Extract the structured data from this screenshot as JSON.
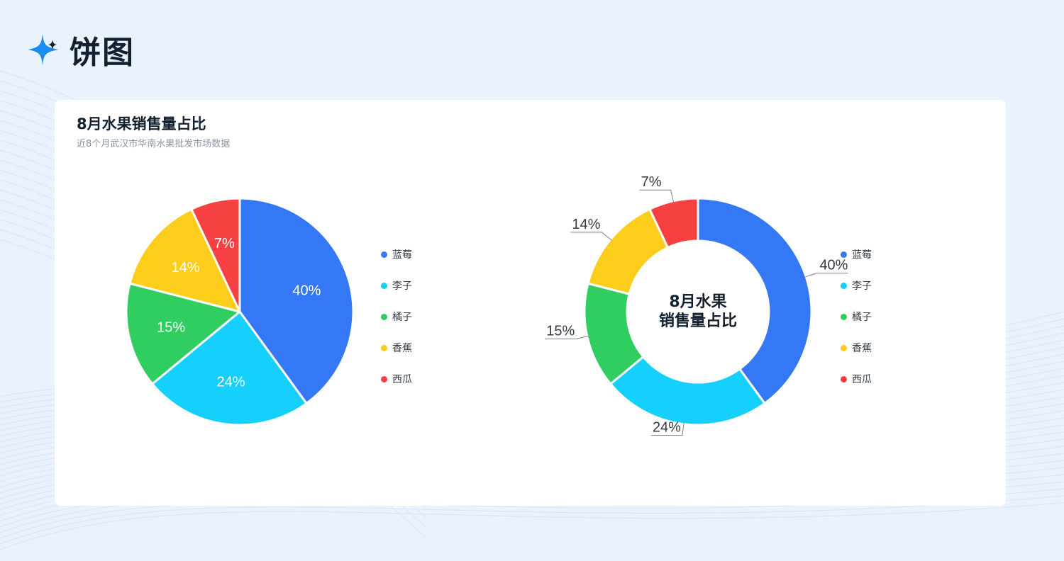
{
  "page_title": "饼图",
  "card": {
    "title": "8月水果销售量占比",
    "subtitle": "近8个月武汉市华南水果批发市场数据"
  },
  "donut_center": {
    "line1": "8月水果",
    "line2": "销售量占比"
  },
  "chart_data": [
    {
      "type": "pie",
      "categories": [
        "蓝莓",
        "李子",
        "橘子",
        "香蕉",
        "西瓜"
      ],
      "values": [
        40,
        24,
        15,
        14,
        7
      ],
      "labels": [
        "40%",
        "24%",
        "15%",
        "14%",
        "7%"
      ],
      "colors": [
        "#3478f6",
        "#15d0fc",
        "#30cd60",
        "#fccd1b",
        "#f64042"
      ],
      "legend": "right"
    },
    {
      "type": "pie",
      "variant": "donut",
      "categories": [
        "蓝莓",
        "李子",
        "橘子",
        "香蕉",
        "西瓜"
      ],
      "values": [
        40,
        24,
        15,
        14,
        7
      ],
      "labels": [
        "40%",
        "24%",
        "15%",
        "14%",
        "7%"
      ],
      "colors": [
        "#3478f6",
        "#15d0fc",
        "#30cd60",
        "#fccd1b",
        "#f64042"
      ],
      "center_text": [
        "8月水果",
        "销售量占比"
      ],
      "legend": "right"
    }
  ]
}
